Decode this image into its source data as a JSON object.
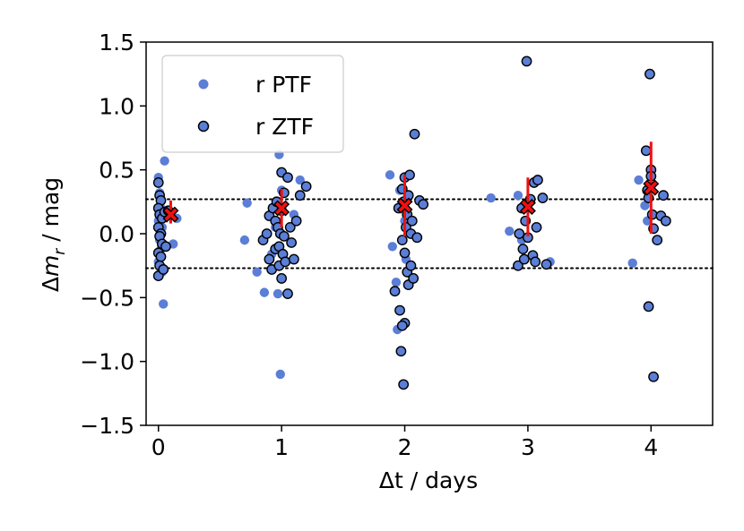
{
  "chart_data": {
    "type": "scatter",
    "title": "",
    "xlabel": "Δt / days",
    "ylabel_parts": [
      "Δ",
      "m",
      "r",
      " / mag"
    ],
    "xlim": [
      -0.1,
      4.5
    ],
    "ylim": [
      -1.5,
      1.5
    ],
    "xticks": [
      0,
      1,
      2,
      3,
      4
    ],
    "xtick_labels": [
      "0",
      "1",
      "2",
      "3",
      "4"
    ],
    "yticks": [
      -1.5,
      -1.0,
      -0.5,
      0.0,
      0.5,
      1.0,
      1.5
    ],
    "ytick_labels": [
      "−1.5",
      "−1.0",
      "−0.5",
      "0.0",
      "0.5",
      "1.0",
      "1.5"
    ],
    "threshold_lines": [
      0.27,
      -0.27
    ],
    "legend": {
      "placement": "top-left",
      "entries": [
        "r PTF",
        "r ZTF"
      ]
    },
    "colors": {
      "point_fill": "#5b7ed6",
      "point_edge": "#000000",
      "mean_marker": "#ee1111",
      "errorbar": "#ee1111"
    },
    "series": [
      {
        "name": "r PTF",
        "points": [
          [
            0.0,
            0.44
          ],
          [
            0.01,
            0.32
          ],
          [
            0.02,
            0.2
          ],
          [
            0.0,
            0.1
          ],
          [
            0.03,
            0.05
          ],
          [
            0.01,
            -0.05
          ],
          [
            0.02,
            -0.12
          ],
          [
            0.0,
            -0.22
          ],
          [
            0.03,
            -0.3
          ],
          [
            0.05,
            0.57
          ],
          [
            0.04,
            -0.55
          ],
          [
            0.12,
            -0.08
          ],
          [
            0.15,
            0.12
          ],
          [
            0.72,
            0.24
          ],
          [
            0.7,
            -0.05
          ],
          [
            0.8,
            -0.3
          ],
          [
            0.86,
            -0.46
          ],
          [
            0.92,
            -0.16
          ],
          [
            0.95,
            0.05
          ],
          [
            0.97,
            -0.47
          ],
          [
            0.98,
            0.62
          ],
          [
            1.0,
            0.34
          ],
          [
            0.99,
            -1.1
          ],
          [
            1.1,
            0.15
          ],
          [
            1.15,
            0.42
          ],
          [
            1.88,
            0.46
          ],
          [
            1.9,
            -0.1
          ],
          [
            1.93,
            -0.38
          ],
          [
            1.94,
            -0.75
          ],
          [
            1.96,
            0.34
          ],
          [
            2.0,
            0.1
          ],
          [
            2.01,
            -0.2
          ],
          [
            2.7,
            0.28
          ],
          [
            2.85,
            0.02
          ],
          [
            2.92,
            0.3
          ],
          [
            2.95,
            -0.05
          ],
          [
            3.18,
            -0.22
          ],
          [
            3.85,
            -0.23
          ],
          [
            3.9,
            0.42
          ],
          [
            3.95,
            0.22
          ],
          [
            3.97,
            0.1
          ]
        ]
      },
      {
        "name": "r ZTF",
        "points": [
          [
            0.0,
            0.4
          ],
          [
            0.01,
            0.3
          ],
          [
            0.02,
            0.26
          ],
          [
            0.0,
            0.2
          ],
          [
            0.01,
            0.15
          ],
          [
            0.03,
            0.12
          ],
          [
            0.0,
            0.05
          ],
          [
            0.02,
            0.0
          ],
          [
            0.01,
            -0.02
          ],
          [
            0.03,
            -0.08
          ],
          [
            0.0,
            -0.15
          ],
          [
            0.02,
            -0.18
          ],
          [
            0.01,
            -0.25
          ],
          [
            0.0,
            -0.33
          ],
          [
            0.04,
            -0.28
          ],
          [
            0.05,
            0.17
          ],
          [
            0.08,
            0.18
          ],
          [
            0.06,
            -0.1
          ],
          [
            0.85,
            -0.05
          ],
          [
            0.88,
            0.0
          ],
          [
            0.9,
            0.14
          ],
          [
            0.9,
            -0.2
          ],
          [
            0.92,
            -0.28
          ],
          [
            0.93,
            0.2
          ],
          [
            0.95,
            0.1
          ],
          [
            0.95,
            -0.12
          ],
          [
            0.96,
            0.25
          ],
          [
            0.97,
            0.05
          ],
          [
            0.98,
            -0.1
          ],
          [
            0.98,
            -0.25
          ],
          [
            0.99,
            0.0
          ],
          [
            1.0,
            0.18
          ],
          [
            1.0,
            -0.35
          ],
          [
            1.0,
            0.48
          ],
          [
            1.01,
            -0.16
          ],
          [
            1.02,
            0.32
          ],
          [
            1.02,
            -0.02
          ],
          [
            1.03,
            -0.22
          ],
          [
            1.05,
            -0.47
          ],
          [
            1.05,
            0.44
          ],
          [
            1.07,
            0.05
          ],
          [
            1.08,
            -0.07
          ],
          [
            1.1,
            -0.2
          ],
          [
            1.12,
            0.1
          ],
          [
            1.15,
            0.3
          ],
          [
            1.2,
            0.37
          ],
          [
            1.92,
            -0.45
          ],
          [
            1.95,
            0.2
          ],
          [
            1.96,
            -0.6
          ],
          [
            1.97,
            -0.92
          ],
          [
            1.98,
            0.35
          ],
          [
            1.98,
            -0.05
          ],
          [
            1.99,
            0.25
          ],
          [
            2.0,
            0.44
          ],
          [
            2.0,
            -0.15
          ],
          [
            2.0,
            -0.7
          ],
          [
            2.01,
            0.05
          ],
          [
            2.02,
            -0.3
          ],
          [
            2.02,
            0.15
          ],
          [
            2.03,
            -0.4
          ],
          [
            2.03,
            0.3
          ],
          [
            2.04,
            0.46
          ],
          [
            2.05,
            -0.25
          ],
          [
            2.05,
            0.0
          ],
          [
            2.06,
            0.1
          ],
          [
            2.07,
            -0.35
          ],
          [
            2.08,
            0.78
          ],
          [
            2.1,
            -0.03
          ],
          [
            2.12,
            0.26
          ],
          [
            2.15,
            0.23
          ],
          [
            1.98,
            -0.72
          ],
          [
            1.99,
            -1.18
          ],
          [
            2.92,
            -0.25
          ],
          [
            2.93,
            0.0
          ],
          [
            2.95,
            0.2
          ],
          [
            2.96,
            -0.12
          ],
          [
            2.97,
            -0.2
          ],
          [
            2.98,
            0.1
          ],
          [
            2.99,
            1.35
          ],
          [
            3.0,
            -0.03
          ],
          [
            3.02,
            0.27
          ],
          [
            3.04,
            -0.17
          ],
          [
            3.05,
            0.4
          ],
          [
            3.06,
            -0.22
          ],
          [
            3.07,
            0.05
          ],
          [
            3.08,
            0.42
          ],
          [
            3.12,
            0.28
          ],
          [
            3.15,
            -0.24
          ],
          [
            3.96,
            0.65
          ],
          [
            3.97,
            0.34
          ],
          [
            3.98,
            0.28
          ],
          [
            3.98,
            -0.57
          ],
          [
            3.99,
            1.25
          ],
          [
            4.0,
            0.5
          ],
          [
            4.0,
            0.45
          ],
          [
            4.01,
            0.15
          ],
          [
            4.02,
            -1.12
          ],
          [
            4.02,
            0.04
          ],
          [
            4.05,
            -0.05
          ],
          [
            4.08,
            0.14
          ],
          [
            4.1,
            0.3
          ],
          [
            4.12,
            0.1
          ]
        ]
      }
    ],
    "means": [
      {
        "x": 0.1,
        "y": 0.15,
        "yerr_low": 0.08,
        "yerr_high": 0.26
      },
      {
        "x": 1.0,
        "y": 0.2,
        "yerr_low": 0.05,
        "yerr_high": 0.35
      },
      {
        "x": 2.0,
        "y": 0.22,
        "yerr_low": -0.02,
        "yerr_high": 0.46
      },
      {
        "x": 3.0,
        "y": 0.21,
        "yerr_low": -0.02,
        "yerr_high": 0.44
      },
      {
        "x": 4.0,
        "y": 0.36,
        "yerr_low": 0.0,
        "yerr_high": 0.72
      }
    ]
  }
}
